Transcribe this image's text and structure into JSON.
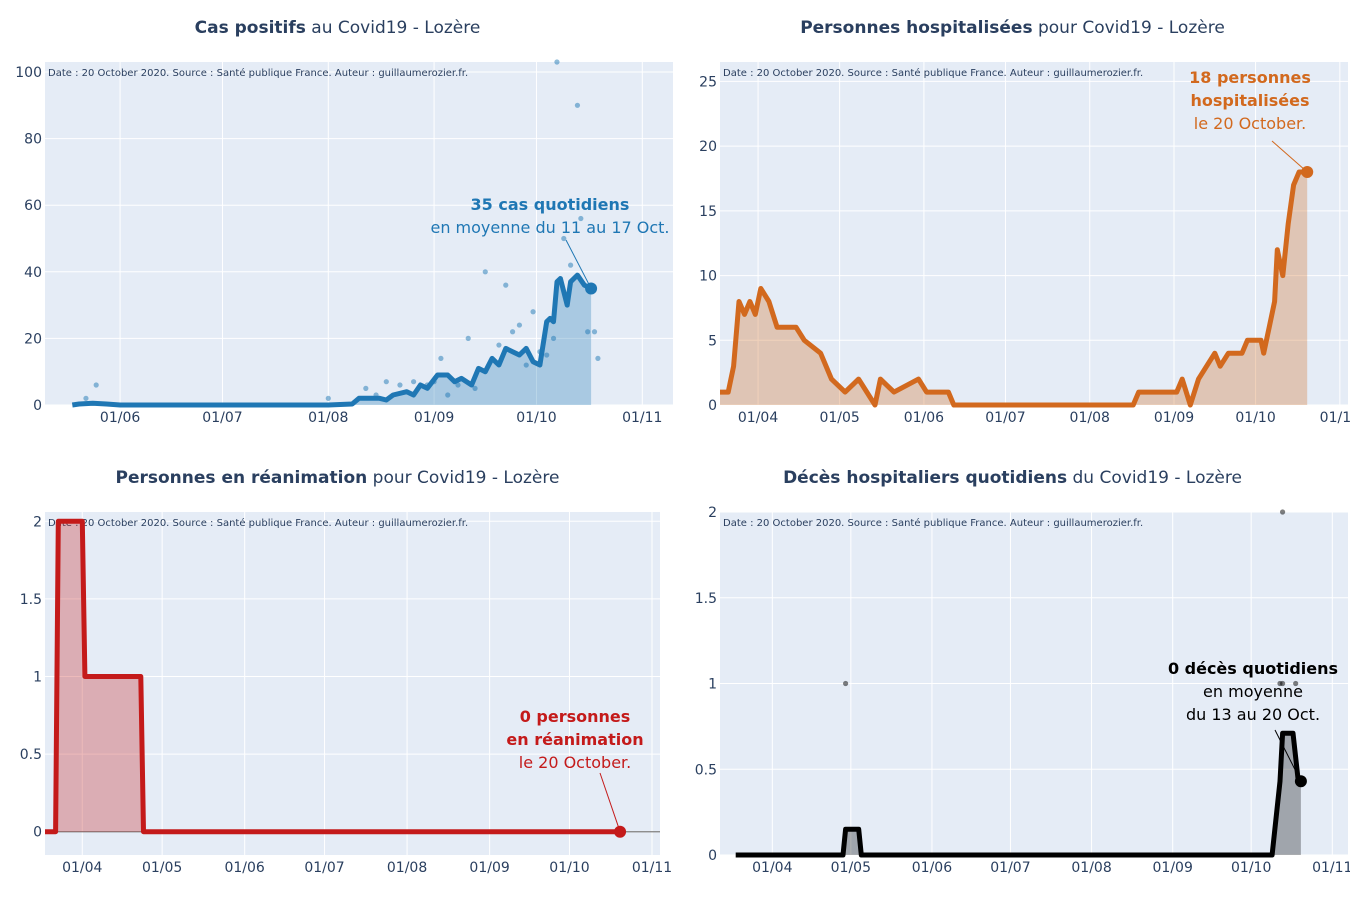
{
  "charts": [
    {
      "id": "cases",
      "title_bold": "Cas positifs",
      "title_rest": " au Covid19 - Lozère",
      "source": "Date : 20 October 2020. Source : Santé publique France. Auteur : guillaumerozier.fr.",
      "color": "#1f77b4",
      "ylim": [
        0,
        103
      ],
      "yticks": [
        0,
        20,
        40,
        60,
        80,
        100
      ],
      "ytick_labels": [
        "0",
        "20",
        "40",
        "60",
        "80",
        "100"
      ],
      "xlim": [
        "2020-05-10",
        "2020-11-10"
      ],
      "xticks": [
        "2020-06-01",
        "2020-07-01",
        "2020-08-01",
        "2020-09-01",
        "2020-10-01",
        "2020-11-01"
      ],
      "xtick_labels": [
        "01/06",
        "01/07",
        "01/08",
        "01/09",
        "01/10",
        "01/11"
      ],
      "annotation": [
        "35 cas quotidiens",
        "en moyenne du 11 au 17 Oct."
      ],
      "end_point": [
        "2020-10-17",
        35
      ]
    },
    {
      "id": "hosp",
      "title_bold": "Personnes hospitalisées",
      "title_rest": " pour Covid19 - Lozère",
      "source": "Date : 20 October 2020. Source : Santé publique France. Auteur : guillaumerozier.fr.",
      "color": "#d2691e",
      "ylim": [
        0,
        26.5
      ],
      "yticks": [
        0,
        5,
        10,
        15,
        20,
        25
      ],
      "ytick_labels": [
        "0",
        "5",
        "10",
        "15",
        "20",
        "25"
      ],
      "xlim": [
        "2020-03-18",
        "2020-11-04"
      ],
      "xticks": [
        "2020-04-01",
        "2020-05-01",
        "2020-06-01",
        "2020-07-01",
        "2020-08-01",
        "2020-09-01",
        "2020-10-01",
        "2020-11-01"
      ],
      "xtick_labels": [
        "01/04",
        "01/05",
        "01/06",
        "01/07",
        "01/08",
        "01/09",
        "01/10",
        "01/11"
      ],
      "annotation": [
        "18 personnes",
        "hospitalisées",
        "le 20 October."
      ],
      "end_point": [
        "2020-10-20",
        18
      ]
    },
    {
      "id": "rea",
      "title_bold": "Personnes en réanimation",
      "title_rest": " pour Covid19 - Lozère",
      "source": "Date : 20 October 2020. Source : Santé publique France. Auteur : guillaumerozier.fr.",
      "color": "#c41a1a",
      "ylim": [
        -0.15,
        2.06
      ],
      "yticks": [
        0,
        0.5,
        1,
        1.5,
        2
      ],
      "ytick_labels": [
        "0",
        "0.5",
        "1",
        "1.5",
        "2"
      ],
      "xlim": [
        "2020-03-18",
        "2020-11-04"
      ],
      "xticks": [
        "2020-04-01",
        "2020-05-01",
        "2020-06-01",
        "2020-07-01",
        "2020-08-01",
        "2020-09-01",
        "2020-10-01",
        "2020-11-01"
      ],
      "xtick_labels": [
        "01/04",
        "01/05",
        "01/06",
        "01/07",
        "01/08",
        "01/09",
        "01/10",
        "01/11"
      ],
      "annotation": [
        "0 personnes",
        "en réanimation",
        "le 20 October."
      ],
      "end_point": [
        "2020-10-20",
        0
      ]
    },
    {
      "id": "deaths",
      "title_bold": "Décès hospitaliers quotidiens",
      "title_rest": " du Covid19 - Lozère",
      "source": "Date : 20 October 2020. Source : Santé publique France. Auteur : guillaumerozier.fr.",
      "color": "#000000",
      "ylim": [
        0,
        2
      ],
      "yticks": [
        0,
        0.5,
        1,
        1.5,
        2
      ],
      "ytick_labels": [
        "0",
        "0.5",
        "1",
        "1.5",
        "2"
      ],
      "xlim": [
        "2020-03-12",
        "2020-11-07"
      ],
      "xticks": [
        "2020-04-01",
        "2020-05-01",
        "2020-06-01",
        "2020-07-01",
        "2020-08-01",
        "2020-09-01",
        "2020-10-01",
        "2020-11-01"
      ],
      "xtick_labels": [
        "01/04",
        "01/05",
        "01/06",
        "01/07",
        "01/08",
        "01/09",
        "01/10",
        "01/11"
      ],
      "annotation": [
        "0 décès quotidiens",
        "en moyenne",
        "du 13 au 20 Oct."
      ],
      "end_point": [
        "2020-10-20",
        0.43
      ]
    }
  ],
  "chart_data": [
    {
      "type": "line",
      "series": [
        {
          "points": [
            [
              "2020-05-18",
              0
            ],
            [
              "2020-05-20",
              0.3
            ],
            [
              "2020-05-24",
              0.5
            ],
            [
              "2020-05-28",
              0.3
            ],
            [
              "2020-06-01",
              0
            ],
            [
              "2020-08-01",
              0
            ],
            [
              "2020-08-08",
              0.3
            ],
            [
              "2020-08-10",
              2
            ],
            [
              "2020-08-16",
              2
            ],
            [
              "2020-08-18",
              1.5
            ],
            [
              "2020-08-20",
              3
            ],
            [
              "2020-08-24",
              4
            ],
            [
              "2020-08-26",
              3
            ],
            [
              "2020-08-28",
              6
            ],
            [
              "2020-08-30",
              5
            ],
            [
              "2020-09-02",
              9
            ],
            [
              "2020-09-05",
              9
            ],
            [
              "2020-09-07",
              7
            ],
            [
              "2020-09-09",
              8
            ],
            [
              "2020-09-12",
              6
            ],
            [
              "2020-09-14",
              11
            ],
            [
              "2020-09-16",
              10
            ],
            [
              "2020-09-18",
              14
            ],
            [
              "2020-09-20",
              12
            ],
            [
              "2020-09-22",
              17
            ],
            [
              "2020-09-24",
              16
            ],
            [
              "2020-09-26",
              15
            ],
            [
              "2020-09-28",
              17
            ],
            [
              "2020-09-30",
              13
            ],
            [
              "2020-10-02",
              12
            ],
            [
              "2020-10-04",
              25
            ],
            [
              "2020-10-05",
              26
            ],
            [
              "2020-10-06",
              25
            ],
            [
              "2020-10-07",
              37
            ],
            [
              "2020-10-08",
              38
            ],
            [
              "2020-10-10",
              30
            ],
            [
              "2020-10-11",
              37
            ],
            [
              "2020-10-13",
              39
            ],
            [
              "2020-10-15",
              36
            ],
            [
              "2020-10-17",
              35
            ]
          ]
        }
      ],
      "scatter": [
        [
          "2020-05-25",
          6
        ],
        [
          "2020-05-22",
          2
        ],
        [
          "2020-08-01",
          2
        ],
        [
          "2020-08-12",
          5
        ],
        [
          "2020-08-15",
          3
        ],
        [
          "2020-08-18",
          7
        ],
        [
          "2020-08-22",
          6
        ],
        [
          "2020-08-26",
          7
        ],
        [
          "2020-08-30",
          6
        ],
        [
          "2020-09-01",
          7
        ],
        [
          "2020-09-03",
          14
        ],
        [
          "2020-09-05",
          3
        ],
        [
          "2020-09-08",
          6
        ],
        [
          "2020-09-11",
          20
        ],
        [
          "2020-09-13",
          5
        ],
        [
          "2020-09-16",
          40
        ],
        [
          "2020-09-20",
          18
        ],
        [
          "2020-09-22",
          36
        ],
        [
          "2020-09-24",
          22
        ],
        [
          "2020-09-26",
          24
        ],
        [
          "2020-09-28",
          12
        ],
        [
          "2020-09-30",
          28
        ],
        [
          "2020-10-02",
          16
        ],
        [
          "2020-10-04",
          15
        ],
        [
          "2020-10-06",
          20
        ],
        [
          "2020-10-07",
          103
        ],
        [
          "2020-10-09",
          50
        ],
        [
          "2020-10-11",
          42
        ],
        [
          "2020-10-13",
          90
        ],
        [
          "2020-10-14",
          56
        ],
        [
          "2020-10-16",
          22
        ],
        [
          "2020-10-18",
          22
        ],
        [
          "2020-10-19",
          14
        ]
      ]
    },
    {
      "type": "area",
      "series": [
        {
          "points": [
            [
              "2020-03-18",
              1
            ],
            [
              "2020-03-21",
              1
            ],
            [
              "2020-03-23",
              3
            ],
            [
              "2020-03-25",
              8
            ],
            [
              "2020-03-27",
              7
            ],
            [
              "2020-03-29",
              8
            ],
            [
              "2020-03-31",
              7
            ],
            [
              "2020-04-02",
              9
            ],
            [
              "2020-04-05",
              8
            ],
            [
              "2020-04-08",
              6
            ],
            [
              "2020-04-15",
              6
            ],
            [
              "2020-04-18",
              5
            ],
            [
              "2020-04-24",
              4
            ],
            [
              "2020-04-28",
              2
            ],
            [
              "2020-05-03",
              1
            ],
            [
              "2020-05-08",
              2
            ],
            [
              "2020-05-14",
              0
            ],
            [
              "2020-05-16",
              2
            ],
            [
              "2020-05-21",
              1
            ],
            [
              "2020-05-30",
              2
            ],
            [
              "2020-06-02",
              1
            ],
            [
              "2020-06-10",
              1
            ],
            [
              "2020-06-12",
              0
            ],
            [
              "2020-08-17",
              0
            ],
            [
              "2020-08-19",
              1
            ],
            [
              "2020-09-02",
              1
            ],
            [
              "2020-09-04",
              2
            ],
            [
              "2020-09-07",
              0
            ],
            [
              "2020-09-10",
              2
            ],
            [
              "2020-09-13",
              3
            ],
            [
              "2020-09-16",
              4
            ],
            [
              "2020-09-18",
              3
            ],
            [
              "2020-09-21",
              4
            ],
            [
              "2020-09-26",
              4
            ],
            [
              "2020-09-28",
              5
            ],
            [
              "2020-10-03",
              5
            ],
            [
              "2020-10-04",
              4
            ],
            [
              "2020-10-06",
              6
            ],
            [
              "2020-10-08",
              8
            ],
            [
              "2020-10-09",
              12
            ],
            [
              "2020-10-11",
              10
            ],
            [
              "2020-10-13",
              14
            ],
            [
              "2020-10-15",
              17
            ],
            [
              "2020-10-17",
              18
            ],
            [
              "2020-10-20",
              18
            ]
          ]
        }
      ]
    },
    {
      "type": "area",
      "series": [
        {
          "points": [
            [
              "2020-03-18",
              0
            ],
            [
              "2020-03-22",
              0
            ],
            [
              "2020-03-23",
              2
            ],
            [
              "2020-04-01",
              2
            ],
            [
              "2020-04-02",
              1
            ],
            [
              "2020-04-23",
              1
            ],
            [
              "2020-04-24",
              0
            ],
            [
              "2020-10-20",
              0
            ]
          ]
        }
      ]
    },
    {
      "type": "line",
      "series": [
        {
          "points": [
            [
              "2020-03-18",
              0
            ],
            [
              "2020-04-28",
              0
            ],
            [
              "2020-04-29",
              0.15
            ],
            [
              "2020-05-04",
              0.15
            ],
            [
              "2020-05-05",
              0
            ],
            [
              "2020-10-09",
              0
            ],
            [
              "2020-10-12",
              0.43
            ],
            [
              "2020-10-13",
              0.71
            ],
            [
              "2020-10-17",
              0.71
            ],
            [
              "2020-10-19",
              0.43
            ],
            [
              "2020-10-20",
              0.43
            ]
          ]
        }
      ],
      "scatter": [
        [
          "2020-04-29",
          1
        ],
        [
          "2020-10-12",
          1
        ],
        [
          "2020-10-13",
          1
        ],
        [
          "2020-10-18",
          1
        ],
        [
          "2020-10-13",
          2
        ]
      ]
    }
  ]
}
